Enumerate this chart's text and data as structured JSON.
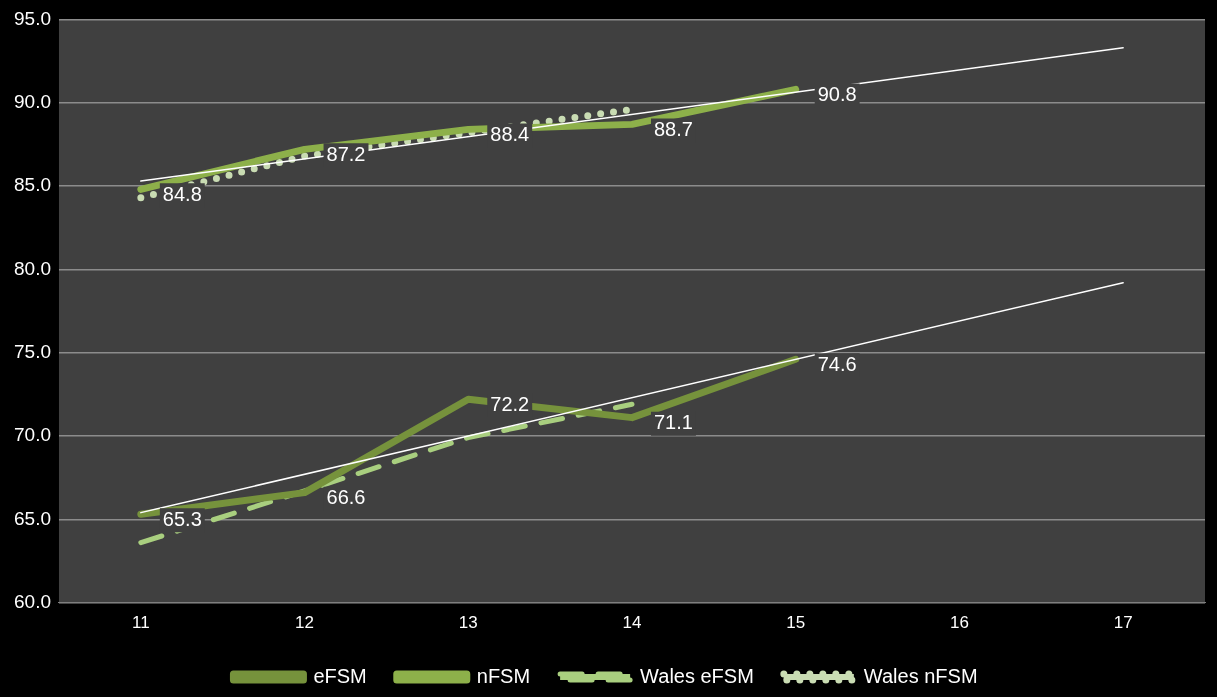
{
  "chart_data": {
    "type": "line",
    "categories": [
      "11",
      "12",
      "13",
      "14",
      "15",
      "16",
      "17"
    ],
    "series": [
      {
        "name": "eFSM",
        "color": "#76923c",
        "values": [
          65.3,
          66.6,
          72.2,
          71.1,
          74.6,
          null,
          null
        ],
        "value_labels": [
          "65.3",
          "66.6",
          "72.2",
          "71.1",
          "74.6",
          null,
          null
        ]
      },
      {
        "name": "nFSM",
        "color": "#8db04a",
        "values": [
          84.8,
          87.2,
          88.4,
          88.7,
          90.8,
          null,
          null
        ],
        "value_labels": [
          "84.8",
          "87.2",
          "88.4",
          "88.7",
          "90.8",
          null,
          null
        ]
      },
      {
        "name": "Wales eFSM",
        "color": "#a9cf7f",
        "values": [
          63.6,
          66.7,
          69.9,
          71.9,
          null,
          null,
          null
        ],
        "line_style": "dashed"
      },
      {
        "name": "Wales nFSM",
        "color": "#c9dcb3",
        "values": [
          84.3,
          86.8,
          88.2,
          89.6,
          null,
          null,
          null
        ],
        "line_style": "dotted"
      },
      {
        "type": "line",
        "color": "#ffffff",
        "values": [
          85.3,
          null,
          null,
          null,
          null,
          null,
          93.3
        ]
      },
      {
        "type": "line",
        "color": "#ffffff",
        "values": [
          65.4,
          null,
          null,
          null,
          null,
          null,
          79.2
        ]
      }
    ],
    "ylim": [
      60,
      95
    ],
    "yticks": [
      {
        "value": 60,
        "label": "60.0"
      },
      {
        "value": 65,
        "label": "65.0"
      },
      {
        "value": 70,
        "label": "70.0"
      },
      {
        "value": 75,
        "label": "75.0"
      },
      {
        "value": 80,
        "label": "80.0"
      },
      {
        "value": 85,
        "label": "85.0"
      },
      {
        "value": 90,
        "label": "90.0"
      },
      {
        "value": 95,
        "label": "95.0"
      }
    ],
    "grid": "y",
    "legend": "bottom"
  }
}
